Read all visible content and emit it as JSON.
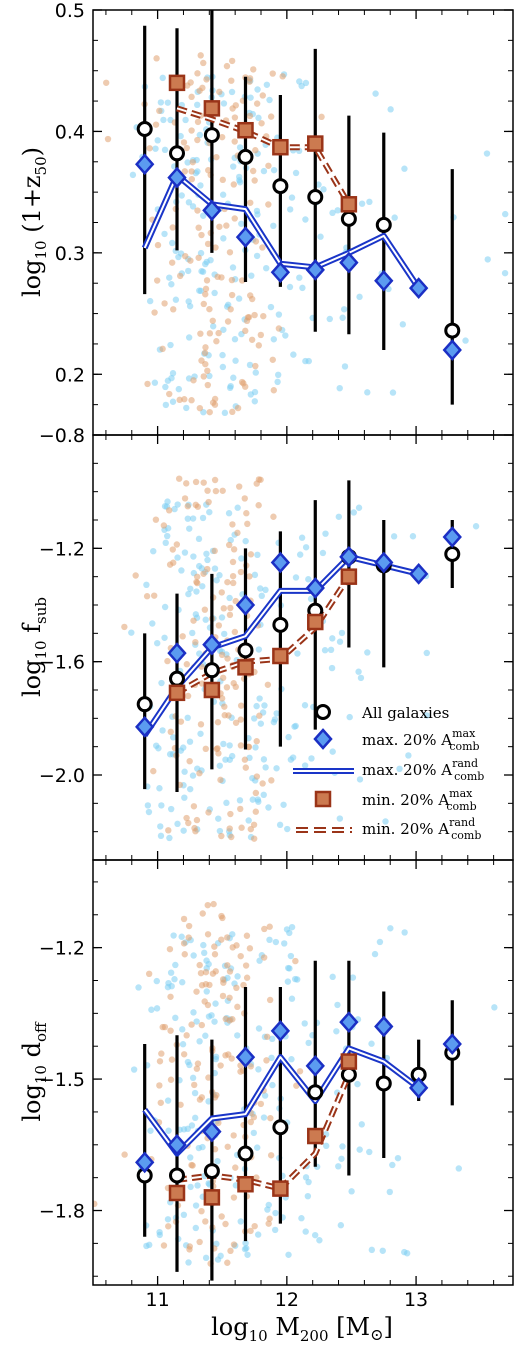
{
  "chart_data": [
    {
      "type": "scatter",
      "panel": "top",
      "ylabel": "log10 (1+z50)",
      "ylim": [
        0.15,
        0.5
      ],
      "yticks": [
        0.2,
        0.3,
        0.4,
        0.5
      ],
      "ytick_labels": [
        "0.2",
        "0.3",
        "0.4",
        "0.5"
      ],
      "series": [
        {
          "name": "All galaxies",
          "x": [
            10.9,
            11.15,
            11.42,
            11.68,
            11.95,
            12.22,
            12.48,
            12.75,
            13.28
          ],
          "y": [
            0.402,
            0.382,
            0.397,
            0.379,
            0.355,
            0.346,
            0.328,
            0.323,
            0.236
          ],
          "yerr_low": [
            0.136,
            0.08,
            0.097,
            0.103,
            0.083,
            0.111,
            0.095,
            0.103,
            0.061
          ],
          "yerr_high": [
            0.085,
            0.103,
            0.103,
            0.066,
            0.075,
            0.122,
            0.085,
            0.076,
            0.133
          ]
        },
        {
          "name": "max. 20% A_comb^max",
          "x": [
            10.9,
            11.15,
            11.42,
            11.68,
            11.95,
            12.22,
            12.48,
            12.75,
            13.02,
            13.28
          ],
          "y": [
            0.373,
            0.362,
            0.335,
            0.313,
            0.284,
            0.286,
            0.292,
            0.277,
            0.271,
            0.22
          ]
        },
        {
          "name": "max. 20% A_comb^rand",
          "x": [
            10.9,
            11.15,
            11.42,
            11.68,
            11.95,
            12.22,
            12.48,
            12.75,
            13.02
          ],
          "y": [
            0.304,
            0.364,
            0.34,
            0.336,
            0.291,
            0.288,
            0.3,
            0.314,
            0.271
          ]
        },
        {
          "name": "min. 20% A_comb^max",
          "x": [
            11.15,
            11.42,
            11.68,
            11.95,
            12.22,
            12.48
          ],
          "y": [
            0.44,
            0.419,
            0.401,
            0.387,
            0.39,
            0.34
          ]
        },
        {
          "name": "min. 20% A_comb^rand",
          "x": [
            11.15,
            11.42,
            11.68,
            11.95,
            12.22,
            12.48
          ],
          "y": [
            0.419,
            0.41,
            0.4,
            0.387,
            0.387,
            0.34
          ]
        }
      ]
    },
    {
      "type": "scatter",
      "panel": "middle",
      "ylabel": "log10 fsub",
      "ylim": [
        -2.3,
        -0.8
      ],
      "yticks": [
        -2.0,
        -1.6,
        -1.2,
        -0.8
      ],
      "ytick_labels": [
        "−2.0",
        "−1.6",
        "−1.2",
        "−0.8"
      ],
      "series": [
        {
          "name": "All galaxies",
          "x": [
            10.9,
            11.15,
            11.42,
            11.68,
            11.95,
            12.22,
            12.48,
            12.75,
            13.28
          ],
          "y": [
            -1.75,
            -1.66,
            -1.63,
            -1.56,
            -1.47,
            -1.42,
            -1.23,
            -1.26,
            -1.22
          ],
          "yerr_low": [
            0.3,
            0.4,
            0.35,
            0.35,
            0.43,
            0.42,
            0.32,
            0.36,
            0.12
          ],
          "yerr_high": [
            0.25,
            0.3,
            0.34,
            0.36,
            0.33,
            0.39,
            0.27,
            0.16,
            0.12
          ]
        },
        {
          "name": "max. 20% A_comb^max",
          "x": [
            10.9,
            11.15,
            11.42,
            11.68,
            11.95,
            12.22,
            12.48,
            12.75,
            13.02,
            13.28
          ],
          "y": [
            -1.83,
            -1.57,
            -1.54,
            -1.4,
            -1.25,
            -1.34,
            -1.23,
            -1.25,
            -1.29,
            -1.16
          ]
        },
        {
          "name": "max. 20% A_comb^rand",
          "x": [
            10.9,
            11.15,
            11.42,
            11.68,
            11.95,
            12.22,
            12.48,
            12.75,
            13.02
          ],
          "y": [
            -1.86,
            -1.69,
            -1.55,
            -1.51,
            -1.35,
            -1.35,
            -1.23,
            -1.26,
            -1.29
          ]
        },
        {
          "name": "min. 20% A_comb^max",
          "x": [
            11.15,
            11.42,
            11.68,
            11.95,
            12.22,
            12.48
          ],
          "y": [
            -1.71,
            -1.7,
            -1.62,
            -1.58,
            -1.46,
            -1.3
          ]
        },
        {
          "name": "min. 20% A_comb^rand",
          "x": [
            11.15,
            11.42,
            11.68,
            11.95,
            12.22,
            12.48
          ],
          "y": [
            -1.71,
            -1.64,
            -1.6,
            -1.59,
            -1.48,
            -1.3
          ]
        }
      ]
    },
    {
      "type": "scatter",
      "panel": "bottom",
      "ylabel": "log10 doff",
      "xlabel": "log10 M200 [M⊙]",
      "xlim": [
        10.5,
        13.75
      ],
      "xticks": [
        11,
        12,
        13
      ],
      "xtick_labels": [
        "11",
        "12",
        "13"
      ],
      "ylim": [
        -1.97,
        -1.0
      ],
      "yticks": [
        -1.8,
        -1.5,
        -1.2
      ],
      "ytick_labels": [
        "−1.8",
        "−1.5",
        "−1.2"
      ],
      "series": [
        {
          "name": "All galaxies",
          "x": [
            10.9,
            11.15,
            11.42,
            11.68,
            11.95,
            12.22,
            12.48,
            12.75,
            13.02,
            13.28
          ],
          "y": [
            -1.72,
            -1.72,
            -1.71,
            -1.67,
            -1.61,
            -1.53,
            -1.49,
            -1.51,
            -1.49,
            -1.44
          ],
          "yerr_low": [
            0.14,
            0.22,
            0.25,
            0.2,
            0.22,
            0.17,
            0.23,
            0.17,
            0.06,
            0.12
          ],
          "yerr_high": [
            0.3,
            0.32,
            0.3,
            0.38,
            0.32,
            0.3,
            0.26,
            0.21,
            0.08,
            0.12
          ]
        },
        {
          "name": "max. 20% A_comb^max",
          "x": [
            10.9,
            11.15,
            11.42,
            11.68,
            11.95,
            12.22,
            12.48,
            12.75,
            13.02,
            13.28
          ],
          "y": [
            -1.69,
            -1.65,
            -1.62,
            -1.45,
            -1.39,
            -1.47,
            -1.37,
            -1.38,
            -1.52,
            -1.42
          ]
        },
        {
          "name": "max. 20% A_comb^rand",
          "x": [
            10.9,
            11.15,
            11.42,
            11.68,
            11.95,
            12.22,
            12.48,
            12.75,
            13.02
          ],
          "y": [
            -1.57,
            -1.67,
            -1.59,
            -1.58,
            -1.45,
            -1.55,
            -1.43,
            -1.46,
            -1.52
          ]
        },
        {
          "name": "min. 20% A_comb^max",
          "x": [
            11.15,
            11.42,
            11.68,
            11.95,
            12.22,
            12.48
          ],
          "y": [
            -1.76,
            -1.77,
            -1.74,
            -1.75,
            -1.63,
            -1.46
          ]
        },
        {
          "name": "min. 20% A_comb^rand",
          "x": [
            11.15,
            11.42,
            11.68,
            11.95,
            12.22,
            12.48
          ],
          "y": [
            -1.73,
            -1.72,
            -1.73,
            -1.75,
            -1.67,
            -1.49
          ]
        }
      ]
    }
  ],
  "legend": {
    "placement": "middle panel, lower-right",
    "entries": [
      {
        "marker": "circle",
        "text": "All galaxies",
        "base": "",
        "sup": "",
        "sub": ""
      },
      {
        "marker": "diamond",
        "text": "",
        "base": "max. 20% A",
        "sup": "max",
        "sub": "comb"
      },
      {
        "marker": "blue-line",
        "text": "",
        "base": "max. 20% A",
        "sup": "rand",
        "sub": "comb"
      },
      {
        "marker": "square",
        "text": "",
        "base": "min. 20% A",
        "sup": "max",
        "sub": "comb"
      },
      {
        "marker": "brown-dash",
        "text": "",
        "base": "min. 20% A",
        "sup": "rand",
        "sub": "comb"
      }
    ]
  },
  "axis_text": {
    "top_y_pre": "log",
    "top_y_sub": "10",
    "top_y_post": " (1+z",
    "top_y_sub2": "50",
    "top_y_end": ")",
    "mid_y_pre": "log",
    "mid_y_sub": "10",
    "mid_y_post": " f",
    "mid_y_sub2": "sub",
    "bot_y_pre": "log",
    "bot_y_sub": "10",
    "bot_y_post": " d",
    "bot_y_sub2": "off",
    "x_pre": "log",
    "x_sub": "10",
    "x_post": " M",
    "x_sub2": "200",
    "x_end": " [M",
    "x_sun": "⊙",
    "x_close": "]"
  },
  "colors": {
    "blue": "#1b2fc4",
    "blue_line": "#1a35c8",
    "brown": "#9a3418",
    "square_fill": "#cc7a50",
    "diamond_fill": "#5b9bf0",
    "scatter_blue": "#7ccdf2",
    "scatter_orange": "#e0a170",
    "errorbar": "#000000"
  }
}
